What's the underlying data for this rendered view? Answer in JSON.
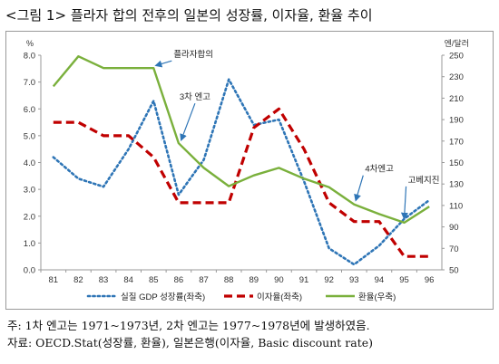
{
  "figure_title": "<그림 1> 플라자 합의 전후의 일본의 성장률, 이자율, 환율 추이",
  "notes": {
    "line1": "주: 1차 엔고는 1971~1973년, 2차 엔고는 1977~1978년에 발생하였음.",
    "line2": "자료: OECD.Stat(성장률, 환율), 일본은행(이자율, Basic discount rate)"
  },
  "chart_data": {
    "type": "line",
    "categories": [
      "81",
      "82",
      "83",
      "84",
      "85",
      "86",
      "87",
      "88",
      "89",
      "90",
      "91",
      "92",
      "93",
      "94",
      "95",
      "96"
    ],
    "y_left": {
      "unit": "%",
      "min": 0,
      "max": 8,
      "step": 1,
      "ticks": [
        "0.0",
        "1.0",
        "2.0",
        "3.0",
        "4.0",
        "5.0",
        "6.0",
        "7.0",
        "8.0"
      ]
    },
    "y_right": {
      "unit": "엔/달러",
      "min": 50,
      "max": 250,
      "step": 20,
      "ticks": [
        "50",
        "70",
        "90",
        "110",
        "130",
        "150",
        "170",
        "190",
        "210",
        "230",
        "250"
      ]
    },
    "series": [
      {
        "name": "실질 GDP 성장률(좌축)",
        "axis": "left",
        "style": "dotted",
        "color": "#2e75b6",
        "values": [
          4.2,
          3.4,
          3.1,
          4.5,
          6.3,
          2.8,
          4.1,
          7.1,
          5.4,
          5.6,
          3.3,
          0.8,
          0.2,
          0.9,
          1.9,
          2.6
        ]
      },
      {
        "name": "이자율(좌축)",
        "axis": "left",
        "style": "dashed",
        "color": "#c00000",
        "values": [
          5.5,
          5.5,
          5.0,
          5.0,
          4.2,
          2.5,
          2.5,
          2.5,
          5.3,
          6.0,
          4.5,
          2.5,
          1.8,
          1.8,
          0.5,
          0.5
        ]
      },
      {
        "name": "환율(우축)",
        "axis": "right",
        "style": "solid",
        "color": "#7ab03c",
        "values": [
          221,
          249,
          238,
          238,
          238,
          168,
          145,
          128,
          138,
          145,
          135,
          127,
          111,
          102,
          94,
          109
        ]
      }
    ],
    "annotations": [
      {
        "text": "플라자합의",
        "series_index": 2,
        "category": "85"
      },
      {
        "text": "3차 엔고",
        "series_index": 2,
        "category": "86"
      },
      {
        "text": "4차엔고",
        "series_index": 2,
        "category": "93"
      },
      {
        "text": "고베지진",
        "series_index": 2,
        "category": "95"
      }
    ],
    "legend_position": "bottom",
    "grid": false
  }
}
